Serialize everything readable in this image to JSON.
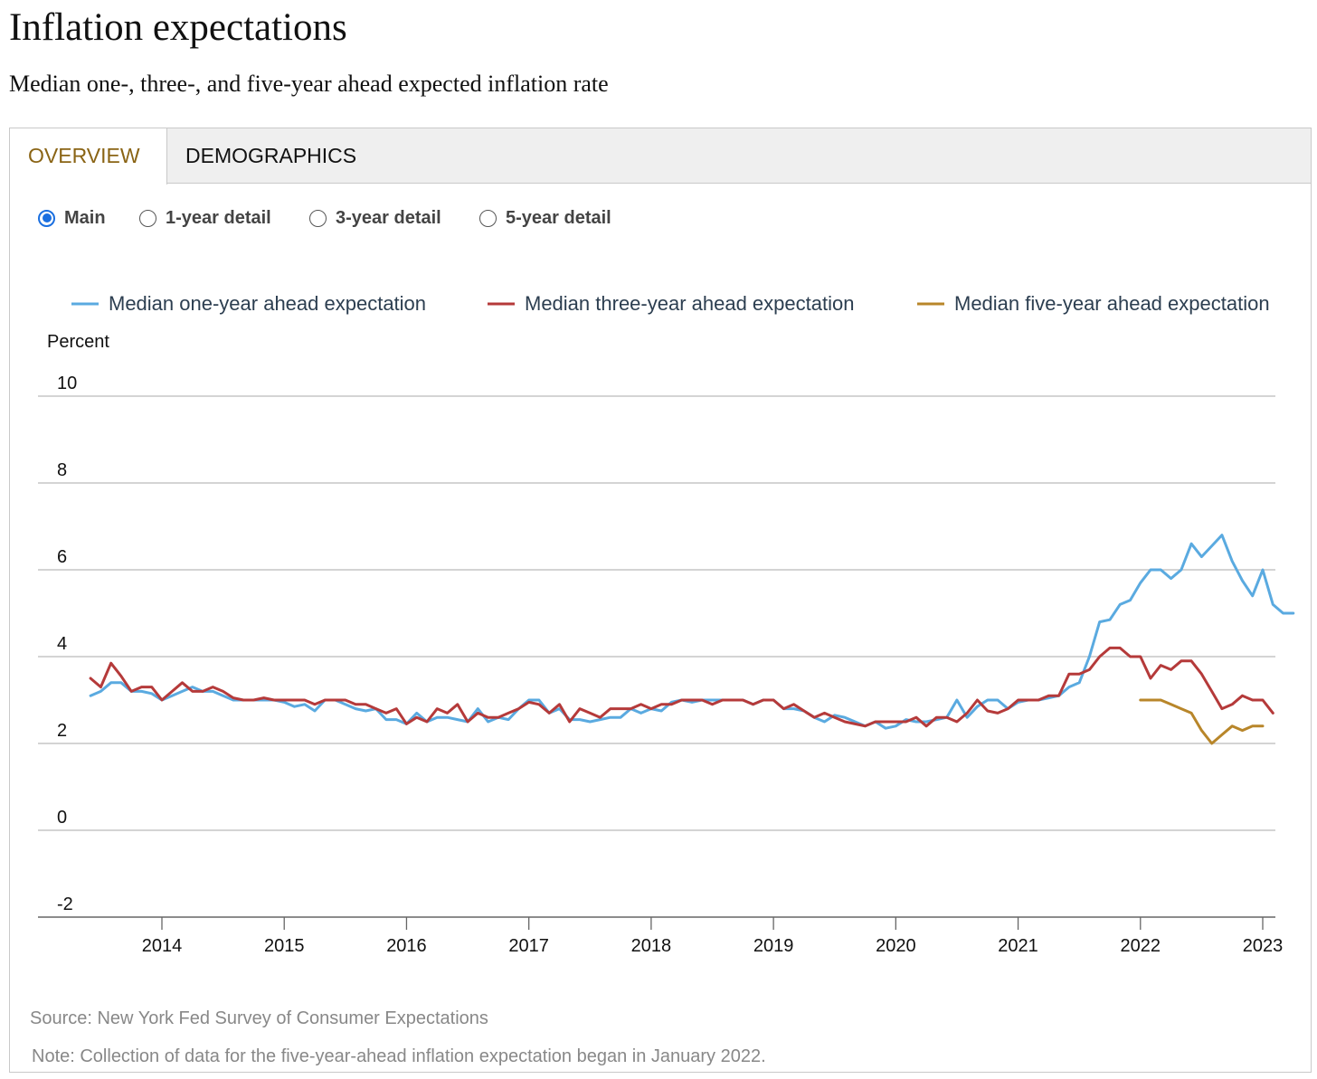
{
  "page": {
    "title": "Inflation expectations",
    "subtitle": "Median one-, three-, and five-year ahead expected inflation rate"
  },
  "tabs": [
    {
      "label": "OVERVIEW",
      "active": true
    },
    {
      "label": "DEMOGRAPHICS",
      "active": false
    }
  ],
  "views": [
    {
      "label": "Main",
      "selected": true
    },
    {
      "label": "1-year detail",
      "selected": false
    },
    {
      "label": "3-year detail",
      "selected": false
    },
    {
      "label": "5-year detail",
      "selected": false
    }
  ],
  "notes": {
    "source": "Source: New York Fed Survey of Consumer Expectations",
    "note": "Note: Collection of data for the five-year-ahead inflation expectation began in January 2022."
  },
  "chart_data": {
    "type": "line",
    "ylabel": "Percent",
    "ylim": [
      -2,
      10
    ],
    "yticks": [
      10,
      8,
      6,
      4,
      2,
      0,
      -2
    ],
    "xticks": [
      "2014",
      "2015",
      "2016",
      "2017",
      "2018",
      "2019",
      "2020",
      "2021",
      "2022",
      "2023"
    ],
    "x_start": "2013-06",
    "grid": true,
    "legend_position": "top",
    "series": [
      {
        "name": "Median one-year ahead expectation",
        "color": "#5aaae0",
        "start": "2013-06",
        "values": [
          3.1,
          3.2,
          3.4,
          3.4,
          3.2,
          3.2,
          3.15,
          3.0,
          3.1,
          3.2,
          3.3,
          3.2,
          3.2,
          3.1,
          3.0,
          3.0,
          3.0,
          3.0,
          3.0,
          2.95,
          2.85,
          2.9,
          2.75,
          3.0,
          3.0,
          2.9,
          2.8,
          2.75,
          2.8,
          2.55,
          2.55,
          2.45,
          2.7,
          2.5,
          2.6,
          2.6,
          2.55,
          2.5,
          2.8,
          2.5,
          2.6,
          2.55,
          2.8,
          3.0,
          3.0,
          2.7,
          2.8,
          2.55,
          2.55,
          2.5,
          2.55,
          2.6,
          2.6,
          2.8,
          2.7,
          2.8,
          2.75,
          2.95,
          3.0,
          2.95,
          3.0,
          3.0,
          3.0,
          3.0,
          3.0,
          2.9,
          3.0,
          3.0,
          2.8,
          2.8,
          2.75,
          2.6,
          2.5,
          2.65,
          2.6,
          2.5,
          2.4,
          2.5,
          2.35,
          2.4,
          2.55,
          2.5,
          2.5,
          2.55,
          2.6,
          3.0,
          2.6,
          2.85,
          3.0,
          3.0,
          2.8,
          2.95,
          3.0,
          3.0,
          3.05,
          3.1,
          3.3,
          3.4,
          4.0,
          4.8,
          4.85,
          5.2,
          5.3,
          5.7,
          6.0,
          6.0,
          5.8,
          6.0,
          6.6,
          6.3,
          6.55,
          6.8,
          6.2,
          5.75,
          5.4,
          6.0,
          5.2,
          5.0,
          5.0
        ]
      },
      {
        "name": "Median three-year ahead expectation",
        "color": "#b53a3a",
        "start": "2013-06",
        "values": [
          3.5,
          3.3,
          3.85,
          3.55,
          3.2,
          3.3,
          3.3,
          3.0,
          3.2,
          3.4,
          3.2,
          3.2,
          3.3,
          3.2,
          3.05,
          3.0,
          3.0,
          3.05,
          3.0,
          3.0,
          3.0,
          3.0,
          2.9,
          3.0,
          3.0,
          3.0,
          2.9,
          2.9,
          2.8,
          2.7,
          2.8,
          2.45,
          2.6,
          2.5,
          2.8,
          2.7,
          2.9,
          2.5,
          2.7,
          2.6,
          2.6,
          2.7,
          2.8,
          2.95,
          2.9,
          2.7,
          2.9,
          2.5,
          2.8,
          2.7,
          2.6,
          2.8,
          2.8,
          2.8,
          2.9,
          2.8,
          2.9,
          2.9,
          3.0,
          3.0,
          3.0,
          2.9,
          3.0,
          3.0,
          3.0,
          2.9,
          3.0,
          3.0,
          2.8,
          2.9,
          2.75,
          2.6,
          2.7,
          2.6,
          2.5,
          2.45,
          2.4,
          2.5,
          2.5,
          2.5,
          2.5,
          2.6,
          2.4,
          2.6,
          2.6,
          2.5,
          2.7,
          3.0,
          2.75,
          2.7,
          2.8,
          3.0,
          3.0,
          3.0,
          3.1,
          3.1,
          3.6,
          3.6,
          3.7,
          4.0,
          4.2,
          4.2,
          4.0,
          4.0,
          3.5,
          3.8,
          3.7,
          3.9,
          3.9,
          3.6,
          3.2,
          2.8,
          2.9,
          3.1,
          3.0,
          3.0,
          2.7
        ]
      },
      {
        "name": "Median five-year ahead expectation",
        "color": "#b8862a",
        "start": "2022-01",
        "values": [
          3.0,
          3.0,
          3.0,
          2.9,
          2.8,
          2.7,
          2.3,
          2.0,
          2.2,
          2.4,
          2.3,
          2.4,
          2.4
        ]
      }
    ]
  }
}
